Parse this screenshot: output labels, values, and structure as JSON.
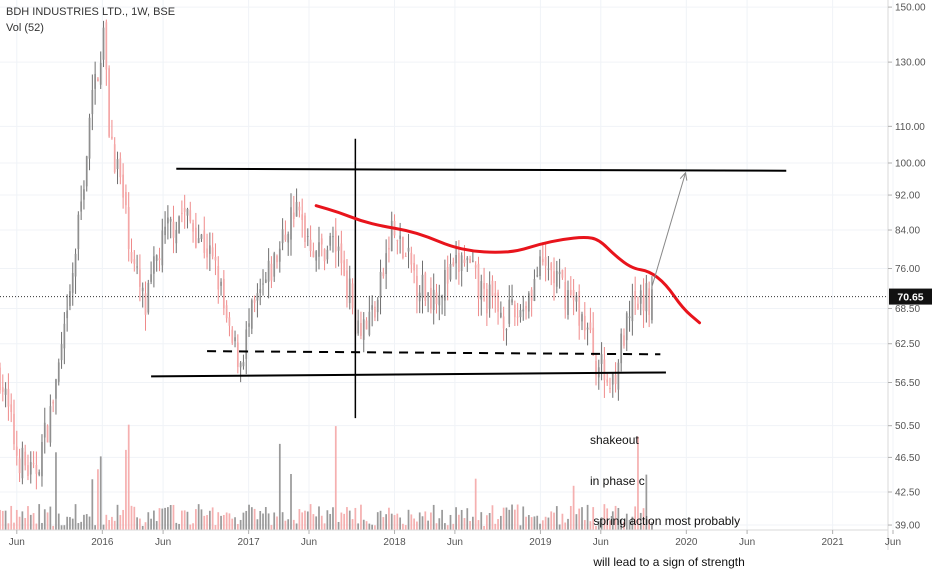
{
  "legend": {
    "symbol_line": "BDH INDUSTRIES LTD., 1W, BSE",
    "volume_line": "Vol (52)"
  },
  "annotation_lines": [
    "shakeout",
    "in phase c",
    " spring action most probably",
    " will lead to a sign of strength"
  ],
  "colors": {
    "up": "#8f8f8f",
    "down": "#f4a7a7",
    "up_wick": "#6f6f6f",
    "down_wick": "#ef8a8a",
    "drawing_black": "#000000",
    "drawing_red": "#e8141c",
    "arrow": "#888888",
    "price_tag_bg": "#111111",
    "price_tag_text": "#ffffff"
  },
  "chart_data": {
    "type": "candlestick",
    "symbol": "BDH INDUSTRIES LTD., 1W, BSE",
    "y_scale": "log",
    "ylim": [
      38.5,
      152
    ],
    "y_ticks": [
      "150.00",
      "130.00",
      "110.00",
      "100.00",
      "92.00",
      "84.00",
      "76.00",
      "68.50",
      "62.50",
      "56.50",
      "50.50",
      "46.50",
      "42.50",
      "39.00"
    ],
    "x_ticks": [
      "Jun",
      "2016",
      "Jun",
      "2017",
      "Jun",
      "2018",
      "Jun",
      "2019",
      "Jun",
      "2020",
      "Jun",
      "2021",
      "Jun"
    ],
    "last_price": "70.65",
    "x_start": "2015-04-20",
    "price_path": [
      [
        "2015-04-20",
        58
      ],
      [
        "2015-06-01",
        47
      ],
      [
        "2015-07-13",
        44
      ],
      [
        "2015-08-24",
        52
      ],
      [
        "2015-10-05",
        66
      ],
      [
        "2015-11-09",
        90
      ],
      [
        "2015-12-07",
        118
      ],
      [
        "2016-01-04",
        140
      ],
      [
        "2016-01-18",
        110
      ],
      [
        "2016-02-15",
        95
      ],
      [
        "2016-03-21",
        76
      ],
      [
        "2016-04-18",
        68
      ],
      [
        "2016-05-16",
        78
      ],
      [
        "2016-06-13",
        84
      ],
      [
        "2016-07-18",
        88
      ],
      [
        "2016-08-22",
        84
      ],
      [
        "2016-09-19",
        80
      ],
      [
        "2016-10-17",
        74
      ],
      [
        "2016-11-14",
        63
      ],
      [
        "2016-12-12",
        60
      ],
      [
        "2017-01-09",
        67
      ],
      [
        "2017-02-13",
        73
      ],
      [
        "2017-03-20",
        80
      ],
      [
        "2017-04-24",
        89
      ],
      [
        "2017-05-22",
        84
      ],
      [
        "2017-06-26",
        79
      ],
      [
        "2017-07-31",
        82
      ],
      [
        "2017-08-28",
        76
      ],
      [
        "2017-09-25",
        67
      ],
      [
        "2017-10-23",
        66
      ],
      [
        "2017-11-20",
        70
      ],
      [
        "2017-12-25",
        84
      ],
      [
        "2018-01-22",
        79
      ],
      [
        "2018-02-26",
        74
      ],
      [
        "2018-03-26",
        71
      ],
      [
        "2018-04-30",
        73
      ],
      [
        "2018-05-28",
        75
      ],
      [
        "2018-06-25",
        78
      ],
      [
        "2018-07-30",
        72
      ],
      [
        "2018-08-27",
        70
      ],
      [
        "2018-09-24",
        68
      ],
      [
        "2018-10-29",
        67
      ],
      [
        "2018-11-26",
        70
      ],
      [
        "2018-12-24",
        75
      ],
      [
        "2019-01-21",
        76
      ],
      [
        "2019-02-25",
        72
      ],
      [
        "2019-03-25",
        70
      ],
      [
        "2019-04-22",
        66
      ],
      [
        "2019-05-20",
        60
      ],
      [
        "2019-06-24",
        56
      ],
      [
        "2019-07-22",
        62
      ],
      [
        "2019-08-19",
        68
      ],
      [
        "2019-09-16",
        70
      ],
      [
        "2019-10-07",
        70.65
      ]
    ],
    "volume_scale_note": "volume shown as relative bars (Vol 52)",
    "drawings": {
      "resistance_line": {
        "from": [
          "2016-07-04",
          98.5
        ],
        "to": [
          "2020-09-07",
          98.0
        ]
      },
      "support_line": {
        "from": [
          "2016-05-02",
          57.4
        ],
        "to": [
          "2019-11-11",
          58.0
        ]
      },
      "dashed_line": {
        "from": [
          "2016-09-19",
          61.3
        ],
        "to": [
          "2019-10-28",
          60.8
        ]
      },
      "vertical_line": {
        "date": "2017-09-25",
        "from": 51.5,
        "to": 106.5
      },
      "arrow": {
        "from": [
          "2019-10-07",
          72.5
        ],
        "to": [
          "2019-12-30",
          97.5
        ]
      },
      "red_curve": [
        [
          "2017-06-19",
          89.5
        ],
        [
          "2017-08-14",
          88.0
        ],
        [
          "2017-10-09",
          86.0
        ],
        [
          "2017-12-04",
          84.8
        ],
        [
          "2018-01-29",
          84.0
        ],
        [
          "2018-03-26",
          82.5
        ],
        [
          "2018-05-21",
          80.5
        ],
        [
          "2018-07-16",
          79.5
        ],
        [
          "2018-09-10",
          79.2
        ],
        [
          "2018-11-05",
          79.5
        ],
        [
          "2018-12-31",
          81.0
        ],
        [
          "2019-02-25",
          82.0
        ],
        [
          "2019-04-22",
          82.5
        ],
        [
          "2019-05-27",
          82.0
        ],
        [
          "2019-07-08",
          78.5
        ],
        [
          "2019-08-19",
          76.0
        ],
        [
          "2019-09-30",
          75.5
        ],
        [
          "2019-11-11",
          73.0
        ],
        [
          "2019-12-23",
          68.5
        ],
        [
          "2020-02-03",
          66.0
        ]
      ]
    }
  }
}
